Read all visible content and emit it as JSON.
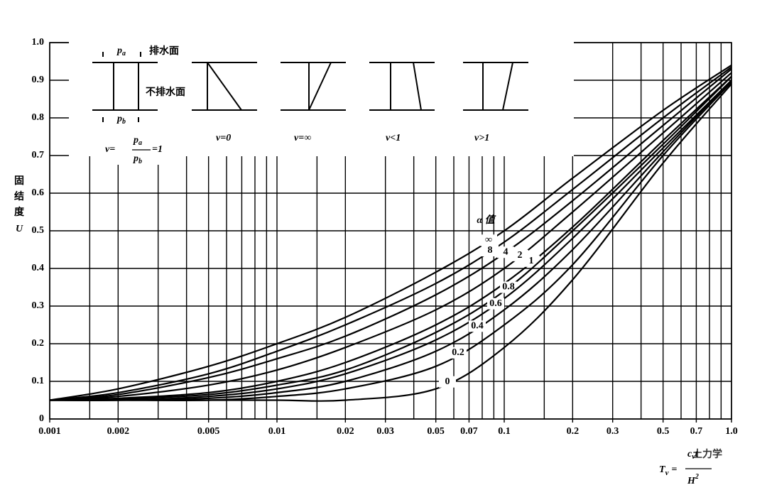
{
  "chart_data": {
    "type": "line",
    "x_label": [
      "T",
      "v",
      "=",
      "c",
      "v",
      "t",
      "H",
      "2"
    ],
    "y_label": [
      "固",
      "结",
      "度",
      "U"
    ],
    "legend_title": "α 值",
    "log_x": true,
    "x": [
      0.001,
      0.002,
      0.005,
      0.01,
      0.02,
      0.05,
      0.1,
      0.2,
      0.5,
      1.0
    ],
    "series": [
      {
        "name": "∞",
        "color": "#000000",
        "values": [
          0.05,
          0.08,
          0.14,
          0.2,
          0.27,
          0.39,
          0.5,
          0.64,
          0.82,
          0.94
        ]
      },
      {
        "name": "8",
        "color": "#000000",
        "values": [
          0.05,
          0.07,
          0.12,
          0.18,
          0.25,
          0.36,
          0.47,
          0.61,
          0.8,
          0.935
        ]
      },
      {
        "name": "4",
        "color": "#000000",
        "values": [
          0.05,
          0.065,
          0.11,
          0.16,
          0.22,
          0.33,
          0.44,
          0.58,
          0.78,
          0.93
        ]
      },
      {
        "name": "2",
        "color": "#000000",
        "values": [
          0.05,
          0.06,
          0.09,
          0.13,
          0.19,
          0.29,
          0.4,
          0.55,
          0.76,
          0.92
        ]
      },
      {
        "name": "1",
        "color": "#000000",
        "values": [
          0.05,
          0.055,
          0.07,
          0.1,
          0.15,
          0.25,
          0.36,
          0.51,
          0.74,
          0.91
        ]
      },
      {
        "name": "0.8",
        "color": "#000000",
        "values": [
          0.05,
          0.053,
          0.065,
          0.09,
          0.13,
          0.23,
          0.34,
          0.5,
          0.73,
          0.91
        ]
      },
      {
        "name": "0.6",
        "color": "#000000",
        "values": [
          0.05,
          0.05,
          0.06,
          0.08,
          0.12,
          0.21,
          0.32,
          0.48,
          0.72,
          0.9
        ]
      },
      {
        "name": "0.4",
        "color": "#000000",
        "values": [
          0.05,
          0.05,
          0.055,
          0.07,
          0.1,
          0.18,
          0.29,
          0.45,
          0.71,
          0.9
        ]
      },
      {
        "name": "0.2",
        "color": "#000000",
        "values": [
          0.05,
          0.05,
          0.05,
          0.06,
          0.08,
          0.14,
          0.25,
          0.41,
          0.7,
          0.895
        ]
      },
      {
        "name": "0",
        "color": "#000000",
        "values": [
          0.05,
          0.05,
          0.05,
          0.05,
          0.05,
          0.08,
          0.19,
          0.37,
          0.68,
          0.89
        ]
      }
    ],
    "xlim": [
      0.001,
      1.0
    ],
    "ylim": [
      0,
      1.0
    ],
    "xticks": [
      0.001,
      0.002,
      0.005,
      0.01,
      0.02,
      0.03,
      0.05,
      0.07,
      0.1,
      0.2,
      0.3,
      0.5,
      0.7,
      {
        "value": 1.0,
        "label": "1.0"
      }
    ],
    "yticks": [
      0,
      0.1,
      0.2,
      0.3,
      0.4,
      0.5,
      0.6,
      0.7,
      0.8,
      0.9,
      {
        "value": 1.0,
        "label": "1.0"
      }
    ],
    "xgrid": [
      0.001,
      0.0015,
      0.002,
      0.003,
      0.004,
      0.005,
      0.006,
      0.007,
      0.008,
      0.009,
      0.01,
      0.015,
      0.02,
      0.03,
      0.04,
      0.05,
      0.06,
      0.07,
      0.08,
      0.09,
      0.1,
      0.15,
      0.2,
      0.3,
      0.4,
      0.5,
      0.6,
      0.7,
      0.8,
      0.9,
      1.0
    ],
    "grid": true
  },
  "inset": {
    "pa": [
      "p",
      "a"
    ],
    "pb": [
      "p",
      "b"
    ],
    "drained": "排水面",
    "undrained": "不排水面",
    "ratio": [
      "v=",
      "=1"
    ],
    "cases": [
      "v=0",
      "v=∞",
      "v<1",
      "v>1"
    ]
  },
  "watermark": "土力学"
}
